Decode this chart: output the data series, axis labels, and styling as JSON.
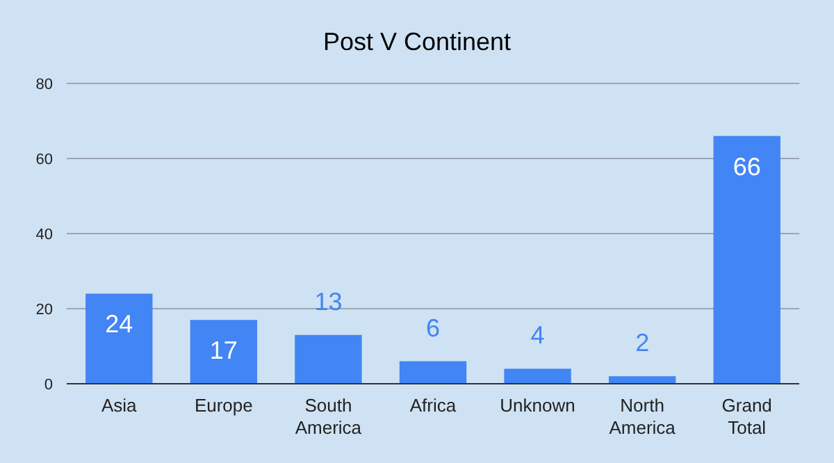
{
  "chart_data": {
    "type": "bar",
    "title": "Post V Continent",
    "categories": [
      "Asia",
      "Europe",
      "South America",
      "Africa",
      "Unknown",
      "North America",
      "Grand Total"
    ],
    "values": [
      24,
      17,
      13,
      6,
      4,
      2,
      66
    ],
    "color": "#4285f4",
    "ylim": [
      0,
      80
    ],
    "yticks": [
      0,
      20,
      40,
      60,
      80
    ],
    "grid": "y",
    "data_labels": true
  }
}
